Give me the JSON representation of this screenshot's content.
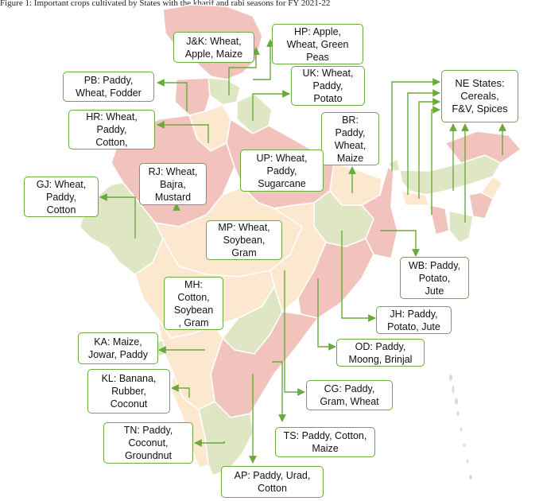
{
  "caption": "Figure 1: Important crops cultivated by States with the kharif and rabi seasons for FY 2021-22",
  "colors": {
    "pink": "#f2c3bd",
    "cream": "#fbe8cf",
    "green": "#dfe6c3",
    "border": "#ffffff",
    "box_border": "#6aaa3c",
    "arrow": "#6aaa3c"
  },
  "labels": {
    "jk": [
      "J&K: Wheat,",
      "Apple, Maize"
    ],
    "hp": [
      "HP: Apple,",
      "Wheat, Green",
      "Peas"
    ],
    "pb": [
      "PB: Paddy,",
      "Wheat, Fodder"
    ],
    "uk": [
      "UK: Wheat,",
      "Paddy,",
      "Potato"
    ],
    "hr": [
      "HR: Wheat,",
      "Paddy,",
      "Cotton,"
    ],
    "ne": [
      "NE States:",
      "Cereals,",
      "F&V, Spices"
    ],
    "br": [
      "BR:",
      "Paddy,",
      "Wheat,",
      "Maize"
    ],
    "up": [
      "UP: Wheat,",
      "Paddy,",
      "Sugarcane"
    ],
    "rj": [
      "RJ: Wheat,",
      "Bajra,",
      "Mustard"
    ],
    "gj": [
      "GJ: Wheat,",
      "Paddy,",
      "Cotton"
    ],
    "mp": [
      "MP: Wheat,",
      "Soybean,",
      "Gram"
    ],
    "wb": [
      "WB: Paddy,",
      "Potato,",
      "Jute"
    ],
    "mh": [
      "MH:",
      "Cotton,",
      "Soybean",
      ", Gram"
    ],
    "jh": [
      "JH: Paddy,",
      "Potato, Jute"
    ],
    "ka": [
      "KA: Maize,",
      "Jowar, Paddy"
    ],
    "od": [
      "OD: Paddy,",
      "Moong, Brinjal"
    ],
    "kl": [
      "KL: Banana,",
      "Rubber,",
      "Coconut"
    ],
    "cg": [
      "CG: Paddy,",
      "Gram, Wheat"
    ],
    "tn": [
      "TN: Paddy,",
      "Coconut,",
      "Groundnut"
    ],
    "ts": [
      "TS: Paddy, Cotton,",
      "Maize"
    ],
    "ap": [
      "AP: Paddy, Urad,",
      "Cotton"
    ]
  }
}
